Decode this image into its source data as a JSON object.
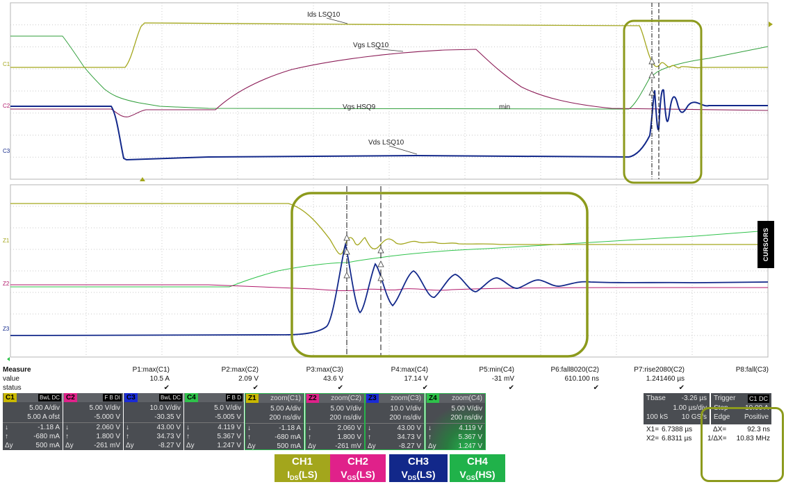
{
  "traces": {
    "ids_lsq10": "Ids LSQ10",
    "vgs_lsq10": "Vgs LSQ10",
    "vgs_hsq9": "Vgs HSQ9",
    "vds_lsq10": "Vds LSQ10",
    "min_marker": "min"
  },
  "channel_markers": {
    "c1": "C1",
    "c2": "C2",
    "c3": "C3",
    "z1": "Z1",
    "z2": "Z2",
    "z3": "Z3"
  },
  "cursors_tab": "CURSORS",
  "measure": {
    "title": "Measure",
    "row_value": "value",
    "row_status": "status",
    "params": [
      {
        "label": "P1:max(C1)",
        "value": "10.5 A",
        "status": "✔"
      },
      {
        "label": "P2:max(C2)",
        "value": "2.09 V",
        "status": "✔"
      },
      {
        "label": "P3:max(C3)",
        "value": "43.6 V",
        "status": "✔"
      },
      {
        "label": "P4:max(C4)",
        "value": "17.14 V",
        "status": "✔"
      },
      {
        "label": "P5:min(C4)",
        "value": "-31 mV",
        "status": "✔"
      },
      {
        "label": "P6:fall8020(C2)",
        "value": "610.100 ns",
        "status": "✔"
      },
      {
        "label": "P7:rise2080(C2)",
        "value": "1.241460 µs",
        "status": "✔"
      },
      {
        "label": "P8:fall(C3)",
        "value": "",
        "status": ""
      }
    ]
  },
  "panels": [
    {
      "tag": "C1",
      "flag": "BwL DC",
      "tag_color": "#c9b800",
      "zoom": "",
      "scale": "5.00 A/div",
      "offset": "5.00 A ofst",
      "down": "-1.18 A",
      "up": "-680 mA",
      "dy": "500 mA"
    },
    {
      "tag": "C2",
      "flag": "F B DI",
      "tag_color": "#e0218a",
      "zoom": "",
      "scale": "5.00 V/div",
      "offset": "-5.000 V",
      "down": "2.060 V",
      "up": "1.800 V",
      "dy": "-261 mV"
    },
    {
      "tag": "C3",
      "flag": "BwL DC",
      "tag_color": "#1a2bd6",
      "zoom": "",
      "scale": "10.0 V/div",
      "offset": "-30.35 V",
      "down": "43.00 V",
      "up": "34.73 V",
      "dy": "-8.27 V"
    },
    {
      "tag": "C4",
      "flag": "F B D",
      "tag_color": "#2ec24a",
      "zoom": "",
      "scale": "5.0 V/div",
      "offset": "-5.005 V",
      "down": "4.119 V",
      "up": "5.367 V",
      "dy": "1.247 V"
    },
    {
      "tag": "Z1",
      "flag": "",
      "tag_color": "#c9b800",
      "zoom": "zoom(C1)",
      "scale": "5.00 A/div",
      "offset": "200 ns/div",
      "down": "-1.18 A",
      "up": "-680 mA",
      "dy": "500 mA"
    },
    {
      "tag": "Z2",
      "flag": "",
      "tag_color": "#e0218a",
      "zoom": "zoom(C2)",
      "scale": "5.00 V/div",
      "offset": "200 ns/div",
      "down": "2.060 V",
      "up": "1.800 V",
      "dy": "-261 mV"
    },
    {
      "tag": "Z3",
      "flag": "",
      "tag_color": "#1a2bd6",
      "zoom": "zoom(C3)",
      "scale": "10.0 V/div",
      "offset": "200 ns/div",
      "down": "43.00 V",
      "up": "34.73 V",
      "dy": "-8.27 V"
    },
    {
      "tag": "Z4",
      "flag": "",
      "tag_color": "#2ec24a",
      "zoom": "zoom(C4)",
      "scale": "5.00 V/div",
      "offset": "200 ns/div",
      "down": "4.119 V",
      "up": "5.367 V",
      "dy": "1.247 V"
    }
  ],
  "timebase": {
    "label": "Tbase",
    "delay": "-3.26 µs",
    "per_div": "1.00 µs/div",
    "samples": "100 kS",
    "rate": "10 GS/s"
  },
  "trigger": {
    "label": "Trigger",
    "flag": "C1 DC",
    "mode": "Stop",
    "level": "10.00 A",
    "type": "Edge",
    "slope": "Positive"
  },
  "cursors": {
    "x1_label": "X1=",
    "x1": "6.7388 µs",
    "x2_label": "X2=",
    "x2": "6.8311 µs",
    "dx_label": "ΔX=",
    "dx": "92.3 ns",
    "inv_dx_label": "1/ΔX=",
    "inv_dx": "10.83 MHz"
  },
  "legend": [
    {
      "ch": "CH1",
      "base": "I",
      "sub": "DS",
      "suffix": "(LS)",
      "color": "#a3a61c"
    },
    {
      "ch": "CH2",
      "base": "V",
      "sub": "GS",
      "suffix": "(LS)",
      "color": "#e0218a"
    },
    {
      "ch": "CH3",
      "base": "V",
      "sub": "DS",
      "suffix": "(LS)",
      "color": "#12288a"
    },
    {
      "ch": "CH4",
      "base": "V",
      "sub": "GS",
      "suffix": "(HS)",
      "color": "#20b24a"
    }
  ],
  "colors": {
    "ch1": "#a3a61c",
    "ch2": "#b0176a",
    "ch3": "#12288a",
    "ch4": "#3cc84a",
    "highlight": "#8c9a1c"
  }
}
